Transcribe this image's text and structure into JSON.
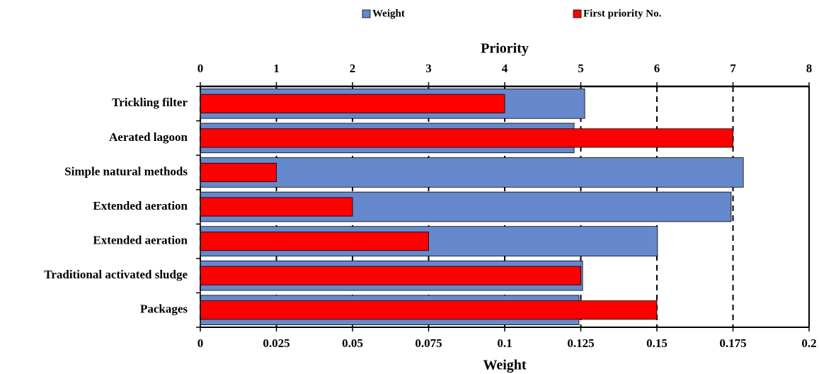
{
  "chart_data": {
    "type": "bar",
    "orientation": "horizontal",
    "categories": [
      "Trickling filter",
      "Aerated lagoon",
      "Simple natural methods",
      "Extended aeration",
      "Extended aeration",
      "Traditional activated sludge",
      "Packages"
    ],
    "series": [
      {
        "name": "Weight",
        "color": "#6688cc",
        "axis": "x",
        "values": [
          0.1263,
          0.1228,
          0.1784,
          0.1744,
          0.1502,
          0.1256,
          0.1244
        ]
      },
      {
        "name": "First priority No.",
        "color": "#ff0000",
        "axis": "x2",
        "values": [
          4,
          7,
          1,
          2,
          3,
          5,
          6
        ]
      }
    ],
    "xlabel": "Weight",
    "x2label": "Priority",
    "xlim": [
      0,
      0.2
    ],
    "xticks": [
      0,
      0.025,
      0.05,
      0.075,
      0.1,
      0.125,
      0.15,
      0.175,
      0.2
    ],
    "x2lim": [
      0,
      8
    ],
    "x2ticks": [
      0,
      1,
      2,
      3,
      4,
      5,
      6,
      7,
      8
    ],
    "grid": true
  }
}
